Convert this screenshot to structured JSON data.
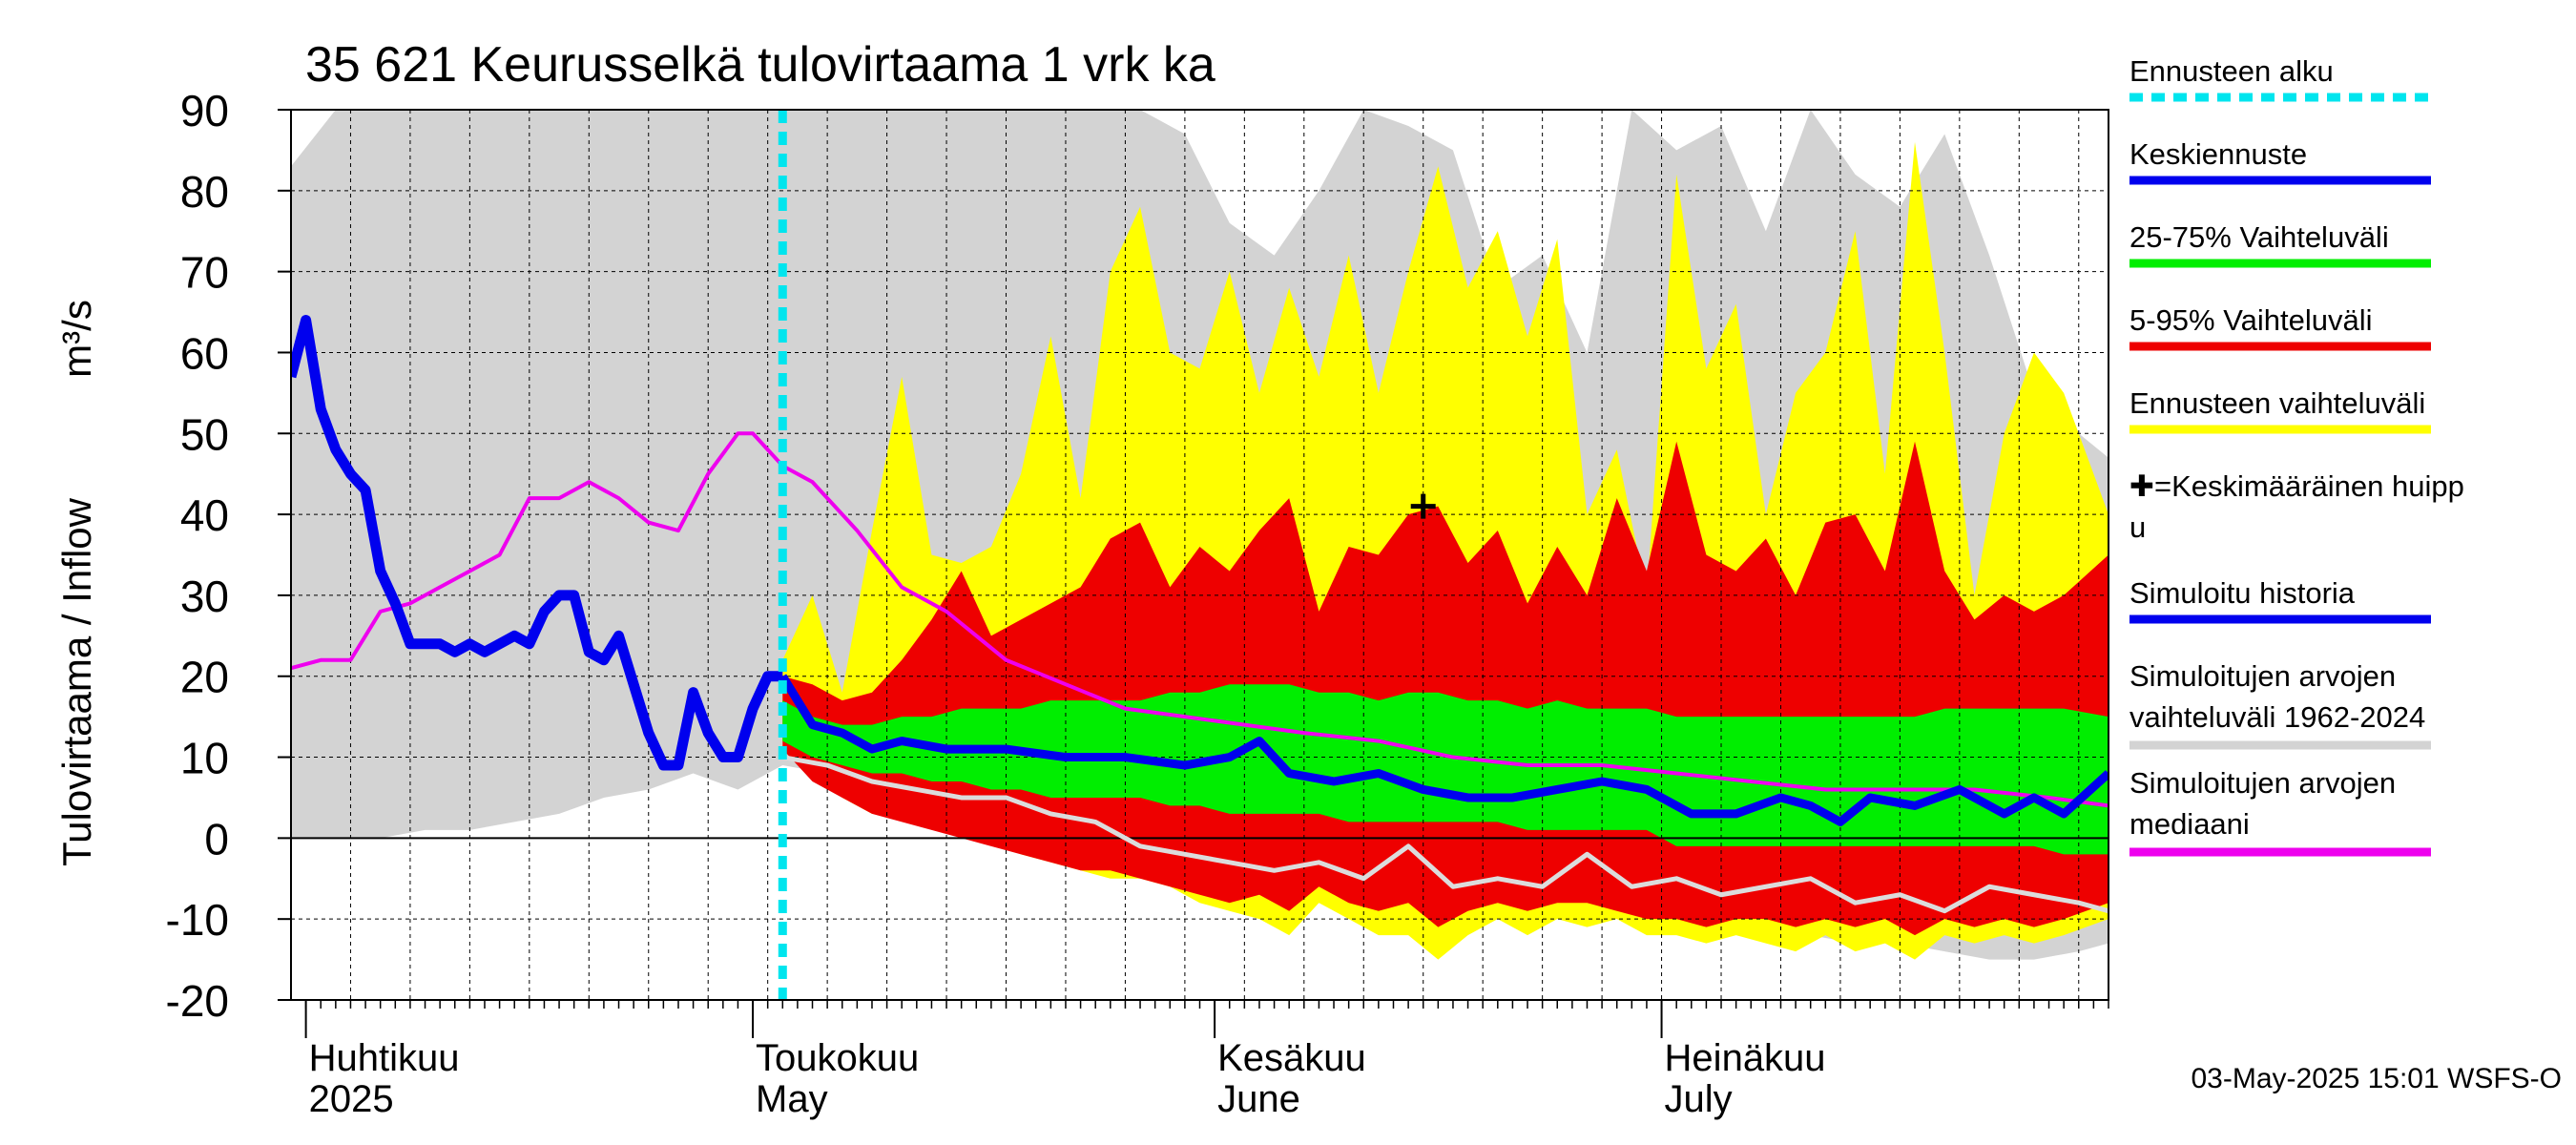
{
  "chart_data": {
    "type": "area",
    "title": "35 621 Keurusselkä tulovirtaama 1 vrk ka",
    "ylabel": "Tulovirtaama / Inflow",
    "yunit": "m³/s",
    "ylim": [
      -20,
      90
    ],
    "yticks": [
      -20,
      -10,
      0,
      10,
      20,
      30,
      40,
      50,
      60,
      70,
      80,
      90
    ],
    "xlim": [
      "2025-03-31",
      "2025-07-31"
    ],
    "month_labels": [
      {
        "date": "2025-04-01",
        "fi": "Huhtikuu",
        "en": "2025"
      },
      {
        "date": "2025-05-01",
        "fi": "Toukokuu",
        "en": "May"
      },
      {
        "date": "2025-06-01",
        "fi": "Kesäkuu",
        "en": "June"
      },
      {
        "date": "2025-07-01",
        "fi": "Heinäkuu",
        "en": "July"
      }
    ],
    "grid": true,
    "legend_position": "right",
    "forecast_start": "2025-05-03",
    "mean_peak": {
      "date": "2025-06-15",
      "value": 41
    },
    "colors": {
      "forecast_start": "#00e5ee",
      "mean_forecast": "#0000ee",
      "range_25_75": "#00ee00",
      "range_5_95": "#ee0000",
      "forecast_range": "#ffff00",
      "sim_history": "#0000ee",
      "sim_range": "#d3d3d3",
      "sim_median": "#ee00ee"
    },
    "series": [
      {
        "name": "Simuloitu historia",
        "key": "history",
        "x": [
          "2025-03-31",
          "2025-04-01",
          "2025-04-02",
          "2025-04-03",
          "2025-04-04",
          "2025-04-05",
          "2025-04-06",
          "2025-04-07",
          "2025-04-08",
          "2025-04-09",
          "2025-04-10",
          "2025-04-11",
          "2025-04-12",
          "2025-04-13",
          "2025-04-14",
          "2025-04-15",
          "2025-04-16",
          "2025-04-17",
          "2025-04-18",
          "2025-04-19",
          "2025-04-20",
          "2025-04-21",
          "2025-04-22",
          "2025-04-23",
          "2025-04-24",
          "2025-04-25",
          "2025-04-26",
          "2025-04-27",
          "2025-04-28",
          "2025-04-29",
          "2025-04-30",
          "2025-05-01",
          "2025-05-02",
          "2025-05-03"
        ],
        "y": [
          57,
          64,
          53,
          48,
          45,
          43,
          33,
          29,
          24,
          24,
          24,
          23,
          24,
          23,
          24,
          25,
          24,
          28,
          30,
          30,
          23,
          22,
          25,
          19,
          13,
          9,
          9,
          18,
          13,
          10,
          10,
          16,
          20,
          20
        ]
      },
      {
        "name": "Keskiennuste",
        "key": "mean",
        "x": [
          "2025-05-03",
          "2025-05-05",
          "2025-05-07",
          "2025-05-09",
          "2025-05-11",
          "2025-05-14",
          "2025-05-18",
          "2025-05-22",
          "2025-05-26",
          "2025-05-30",
          "2025-06-02",
          "2025-06-04",
          "2025-06-06",
          "2025-06-09",
          "2025-06-12",
          "2025-06-15",
          "2025-06-18",
          "2025-06-21",
          "2025-06-24",
          "2025-06-27",
          "2025-06-30",
          "2025-07-03",
          "2025-07-06",
          "2025-07-09",
          "2025-07-11",
          "2025-07-13",
          "2025-07-15",
          "2025-07-18",
          "2025-07-21",
          "2025-07-24",
          "2025-07-26",
          "2025-07-28",
          "2025-07-31"
        ],
        "y": [
          20,
          14,
          13,
          11,
          12,
          11,
          11,
          10,
          10,
          9,
          10,
          12,
          8,
          7,
          8,
          6,
          5,
          5,
          6,
          7,
          6,
          3,
          3,
          5,
          4,
          2,
          5,
          4,
          6,
          3,
          5,
          3,
          8
        ]
      },
      {
        "name": "Simuloitujen arvojen mediaani",
        "key": "median",
        "x": [
          "2025-03-31",
          "2025-04-02",
          "2025-04-04",
          "2025-04-06",
          "2025-04-08",
          "2025-04-10",
          "2025-04-12",
          "2025-04-14",
          "2025-04-16",
          "2025-04-18",
          "2025-04-20",
          "2025-04-22",
          "2025-04-24",
          "2025-04-26",
          "2025-04-28",
          "2025-04-30",
          "2025-05-01",
          "2025-05-02",
          "2025-05-03",
          "2025-05-05",
          "2025-05-08",
          "2025-05-11",
          "2025-05-14",
          "2025-05-18",
          "2025-05-22",
          "2025-05-26",
          "2025-05-30",
          "2025-06-03",
          "2025-06-07",
          "2025-06-12",
          "2025-06-17",
          "2025-06-22",
          "2025-06-27",
          "2025-07-02",
          "2025-07-07",
          "2025-07-12",
          "2025-07-17",
          "2025-07-22",
          "2025-07-27",
          "2025-07-31"
        ],
        "y": [
          21,
          22,
          22,
          28,
          29,
          31,
          33,
          35,
          42,
          42,
          44,
          42,
          39,
          38,
          45,
          50,
          50,
          48,
          46,
          44,
          38,
          31,
          28,
          22,
          19,
          16,
          15,
          14,
          13,
          12,
          10,
          9,
          9,
          8,
          7,
          6,
          6,
          6,
          5,
          4
        ]
      },
      {
        "name": "Ennusteen vaihteluväli",
        "key": "forecast_range",
        "x": [
          "2025-05-03",
          "2025-05-05",
          "2025-05-07",
          "2025-05-09",
          "2025-05-11",
          "2025-05-13",
          "2025-05-15",
          "2025-05-17",
          "2025-05-19",
          "2025-05-21",
          "2025-05-23",
          "2025-05-25",
          "2025-05-27",
          "2025-05-29",
          "2025-05-31",
          "2025-06-02",
          "2025-06-04",
          "2025-06-06",
          "2025-06-08",
          "2025-06-10",
          "2025-06-12",
          "2025-06-14",
          "2025-06-16",
          "2025-06-18",
          "2025-06-20",
          "2025-06-22",
          "2025-06-24",
          "2025-06-26",
          "2025-06-28",
          "2025-06-30",
          "2025-07-02",
          "2025-07-04",
          "2025-07-06",
          "2025-07-08",
          "2025-07-10",
          "2025-07-12",
          "2025-07-14",
          "2025-07-16",
          "2025-07-18",
          "2025-07-20",
          "2025-07-22",
          "2025-07-24",
          "2025-07-26",
          "2025-07-28",
          "2025-07-31"
        ],
        "high": [
          22,
          30,
          18,
          38,
          57,
          35,
          34,
          36,
          45,
          62,
          42,
          70,
          78,
          60,
          58,
          70,
          55,
          68,
          57,
          72,
          55,
          70,
          83,
          68,
          75,
          62,
          74,
          40,
          48,
          30,
          82,
          58,
          66,
          40,
          55,
          60,
          75,
          45,
          86,
          60,
          30,
          50,
          60,
          55,
          40
        ],
        "low": [
          12,
          8,
          5,
          3,
          3,
          2,
          1,
          0,
          -2,
          -3,
          -4,
          -5,
          -5,
          -6,
          -8,
          -9,
          -10,
          -12,
          -8,
          -10,
          -12,
          -12,
          -15,
          -12,
          -10,
          -12,
          -10,
          -11,
          -10,
          -12,
          -12,
          -13,
          -12,
          -13,
          -14,
          -12,
          -14,
          -13,
          -15,
          -12,
          -13,
          -12,
          -13,
          -12,
          -10
        ]
      },
      {
        "name": "5-95% Vaihteluväli",
        "key": "range_5_95",
        "x": [
          "2025-05-03",
          "2025-05-05",
          "2025-05-07",
          "2025-05-09",
          "2025-05-11",
          "2025-05-13",
          "2025-05-15",
          "2025-05-17",
          "2025-05-19",
          "2025-05-21",
          "2025-05-23",
          "2025-05-25",
          "2025-05-27",
          "2025-05-29",
          "2025-05-31",
          "2025-06-02",
          "2025-06-04",
          "2025-06-06",
          "2025-06-08",
          "2025-06-10",
          "2025-06-12",
          "2025-06-14",
          "2025-06-16",
          "2025-06-18",
          "2025-06-20",
          "2025-06-22",
          "2025-06-24",
          "2025-06-26",
          "2025-06-28",
          "2025-06-30",
          "2025-07-02",
          "2025-07-04",
          "2025-07-06",
          "2025-07-08",
          "2025-07-10",
          "2025-07-12",
          "2025-07-14",
          "2025-07-16",
          "2025-07-18",
          "2025-07-20",
          "2025-07-22",
          "2025-07-24",
          "2025-07-26",
          "2025-07-28",
          "2025-07-31"
        ],
        "high": [
          20,
          19,
          17,
          18,
          22,
          27,
          33,
          25,
          27,
          29,
          31,
          37,
          39,
          31,
          36,
          33,
          38,
          42,
          28,
          36,
          35,
          40,
          41,
          34,
          38,
          29,
          36,
          30,
          42,
          33,
          49,
          35,
          33,
          37,
          30,
          39,
          40,
          33,
          49,
          33,
          27,
          30,
          28,
          30,
          35
        ],
        "low": [
          11,
          7,
          5,
          3,
          2,
          1,
          0,
          -1,
          -2,
          -3,
          -4,
          -4,
          -5,
          -6,
          -7,
          -8,
          -7,
          -9,
          -6,
          -8,
          -9,
          -8,
          -11,
          -9,
          -8,
          -9,
          -8,
          -8,
          -9,
          -10,
          -10,
          -11,
          -10,
          -10,
          -11,
          -10,
          -11,
          -10,
          -12,
          -10,
          -11,
          -10,
          -11,
          -10,
          -8
        ]
      },
      {
        "name": "25-75% Vaihteluväli",
        "key": "range_25_75",
        "x": [
          "2025-05-03",
          "2025-05-05",
          "2025-05-07",
          "2025-05-09",
          "2025-05-11",
          "2025-05-13",
          "2025-05-15",
          "2025-05-17",
          "2025-05-19",
          "2025-05-21",
          "2025-05-23",
          "2025-05-25",
          "2025-05-27",
          "2025-05-29",
          "2025-05-31",
          "2025-06-02",
          "2025-06-04",
          "2025-06-06",
          "2025-06-08",
          "2025-06-10",
          "2025-06-12",
          "2025-06-14",
          "2025-06-16",
          "2025-06-18",
          "2025-06-20",
          "2025-06-22",
          "2025-06-24",
          "2025-06-26",
          "2025-06-28",
          "2025-06-30",
          "2025-07-02",
          "2025-07-04",
          "2025-07-06",
          "2025-07-08",
          "2025-07-10",
          "2025-07-12",
          "2025-07-14",
          "2025-07-16",
          "2025-07-18",
          "2025-07-20",
          "2025-07-22",
          "2025-07-24",
          "2025-07-26",
          "2025-07-28",
          "2025-07-31"
        ],
        "high": [
          17,
          15,
          14,
          14,
          15,
          15,
          16,
          16,
          16,
          17,
          17,
          17,
          17,
          18,
          18,
          19,
          19,
          19,
          18,
          18,
          17,
          18,
          18,
          17,
          17,
          16,
          17,
          16,
          16,
          16,
          15,
          15,
          15,
          15,
          15,
          15,
          15,
          15,
          15,
          16,
          16,
          16,
          16,
          16,
          15
        ],
        "low": [
          12,
          10,
          9,
          8,
          8,
          7,
          7,
          6,
          6,
          5,
          5,
          5,
          5,
          4,
          4,
          3,
          3,
          3,
          3,
          2,
          2,
          2,
          2,
          2,
          2,
          1,
          1,
          1,
          1,
          1,
          -1,
          -1,
          -1,
          -1,
          -1,
          -1,
          -1,
          -1,
          -1,
          -1,
          -1,
          -1,
          -1,
          -2,
          -2
        ]
      },
      {
        "name": "Simuloitujen arvojen vaihteluväli 1962-2024",
        "key": "sim_range",
        "x": [
          "2025-03-31",
          "2025-04-03",
          "2025-04-06",
          "2025-04-09",
          "2025-04-12",
          "2025-04-15",
          "2025-04-18",
          "2025-04-21",
          "2025-04-24",
          "2025-04-27",
          "2025-04-30",
          "2025-05-03",
          "2025-05-06",
          "2025-05-09",
          "2025-05-12",
          "2025-05-15",
          "2025-05-18",
          "2025-05-21",
          "2025-05-24",
          "2025-05-27",
          "2025-05-30",
          "2025-06-02",
          "2025-06-05",
          "2025-06-08",
          "2025-06-11",
          "2025-06-14",
          "2025-06-17",
          "2025-06-20",
          "2025-06-23",
          "2025-06-26",
          "2025-06-29",
          "2025-07-02",
          "2025-07-05",
          "2025-07-08",
          "2025-07-11",
          "2025-07-14",
          "2025-07-17",
          "2025-07-20",
          "2025-07-23",
          "2025-07-26",
          "2025-07-29",
          "2025-07-31"
        ],
        "high": [
          83,
          90,
          90,
          90,
          90,
          90,
          90,
          90,
          90,
          90,
          90,
          90,
          90,
          90,
          90,
          90,
          90,
          90,
          90,
          90,
          87,
          76,
          72,
          80,
          90,
          88,
          85,
          68,
          72,
          60,
          90,
          85,
          88,
          75,
          90,
          82,
          78,
          87,
          72,
          55,
          50,
          47
        ],
        "low": [
          0,
          0,
          0,
          1,
          1,
          2,
          3,
          5,
          6,
          8,
          6,
          9,
          8,
          6,
          5,
          4,
          3,
          2,
          1,
          -1,
          -3,
          -4,
          -5,
          -6,
          -6,
          -7,
          -7,
          -8,
          -8,
          -9,
          -10,
          -10,
          -11,
          -12,
          -12,
          -13,
          -13,
          -14,
          -15,
          -15,
          -14,
          -13
        ]
      },
      {
        "name": "Simuloitujen arvojen minimi",
        "key": "sim_low",
        "x": [
          "2025-05-03",
          "2025-05-06",
          "2025-05-09",
          "2025-05-12",
          "2025-05-15",
          "2025-05-18",
          "2025-05-21",
          "2025-05-24",
          "2025-05-27",
          "2025-05-30",
          "2025-06-02",
          "2025-06-05",
          "2025-06-08",
          "2025-06-11",
          "2025-06-14",
          "2025-06-17",
          "2025-06-20",
          "2025-06-23",
          "2025-06-26",
          "2025-06-29",
          "2025-07-02",
          "2025-07-05",
          "2025-07-08",
          "2025-07-11",
          "2025-07-14",
          "2025-07-17",
          "2025-07-20",
          "2025-07-23",
          "2025-07-26",
          "2025-07-29",
          "2025-07-31"
        ],
        "y": [
          10,
          9,
          7,
          6,
          5,
          5,
          3,
          2,
          -1,
          -2,
          -3,
          -4,
          -3,
          -5,
          -1,
          -6,
          -5,
          -6,
          -2,
          -6,
          -5,
          -7,
          -6,
          -5,
          -8,
          -7,
          -9,
          -6,
          -7,
          -8,
          -9
        ]
      }
    ]
  },
  "legend": [
    {
      "label": "Ennusteen alku",
      "kind": "dashed",
      "color": "#00e5ee"
    },
    {
      "label": "Keskiennuste",
      "kind": "line",
      "color": "#0000ee"
    },
    {
      "label": "25-75% Vaihteluväli",
      "kind": "line",
      "color": "#00ee00"
    },
    {
      "label": "5-95% Vaihteluväli",
      "kind": "line",
      "color": "#ee0000"
    },
    {
      "label": "Ennusteen vaihteluväli",
      "kind": "line",
      "color": "#ffff00"
    },
    {
      "label": "✚=Keskimääräinen huipp",
      "label2": "u",
      "kind": "none",
      "color": "#000000"
    },
    {
      "label": "Simuloitu historia",
      "kind": "line",
      "color": "#0000ee"
    },
    {
      "label": "Simuloitujen arvojen",
      "label2": "vaihteluväli 1962-2024",
      "kind": "line",
      "color": "#d3d3d3"
    },
    {
      "label": "Simuloitujen arvojen",
      "label2": "mediaani",
      "kind": "line",
      "color": "#ee00ee"
    }
  ],
  "footer": "03-May-2025 15:01 WSFS-O"
}
